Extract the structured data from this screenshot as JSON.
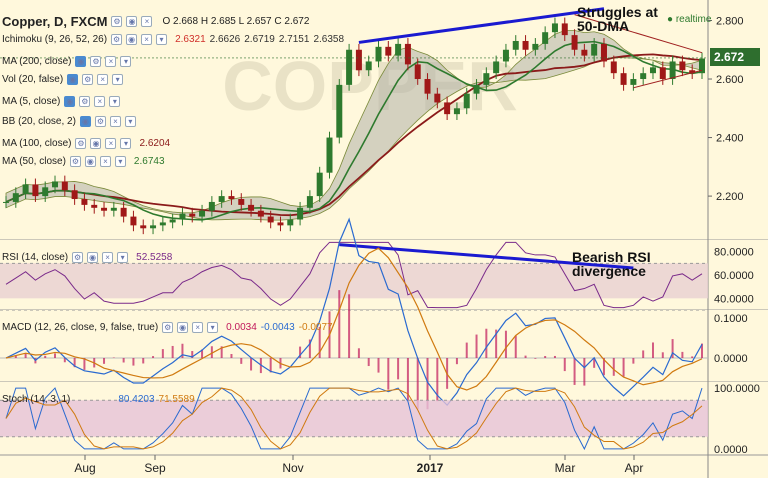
{
  "header": {
    "symbol": "Copper, D, FXCM",
    "ohlc": "O 2.668 H 2.685 L 2.657 C 2.672",
    "realtime": "realtime"
  },
  "indicators": [
    {
      "label": "Ichimoku (9, 26, 52, 26)",
      "values": [
        "2.6321",
        "2.6626",
        "2.6719",
        "2.7151",
        "2.6358"
      ],
      "colors": [
        "#d0302a",
        "#333",
        "#333",
        "#333",
        "#333"
      ]
    },
    {
      "label": "MA (200, close)",
      "values": [],
      "colors": []
    },
    {
      "label": "Vol (20, false)",
      "values": [],
      "colors": []
    },
    {
      "label": "MA (5, close)",
      "values": [],
      "colors": []
    },
    {
      "label": "BB (20, close, 2)",
      "values": [],
      "colors": []
    },
    {
      "label": "MA (100, close)",
      "values": [
        "2.6204"
      ],
      "colors": [
        "#8b1a1a"
      ]
    },
    {
      "label": "MA (50, close)",
      "values": [
        "2.6743"
      ],
      "colors": [
        "#2e7a2e"
      ]
    }
  ],
  "annotations": {
    "dma": "Struggles at\n50-DMA",
    "rsi": "Bearish RSI\ndivergence"
  },
  "price_tag": "2.672",
  "rsi_label": {
    "label": "RSI (14, close)",
    "value": "52.5258"
  },
  "macd_label": {
    "label": "MACD (12, 26, close, 9, false, true)",
    "values": [
      "0.0034",
      "-0.0043",
      "-0.0077"
    ]
  },
  "stoch_label": {
    "label": "Stoch (14, 3, 1)",
    "values": [
      "80.4203",
      "71.5589"
    ]
  },
  "colors": {
    "up": "#2e7a2e",
    "down": "#a01818",
    "ma50": "#2e7a2e",
    "ma100": "#8b1a1a",
    "trend": "#1a1ad0",
    "bg": "#fff8dc",
    "cloud": "#b0b0a8",
    "rsi_band": "#e8cfd2",
    "stoch_band": "#e6c2d8",
    "tag": "#2e6e2e"
  },
  "chart_data": [
    {
      "type": "candlestick",
      "title": "Copper, D, FXCM",
      "x_ticks": [
        "Aug",
        "Sep",
        "Nov",
        "2017",
        "Mar",
        "Apr"
      ],
      "y_ticks": [
        "2.800",
        "2.600",
        "2.400",
        "2.200"
      ],
      "ylim": [
        2.05,
        2.87
      ],
      "close_series_approx": [
        2.18,
        2.21,
        2.24,
        2.2,
        2.23,
        2.25,
        2.22,
        2.19,
        2.17,
        2.16,
        2.15,
        2.16,
        2.13,
        2.1,
        2.09,
        2.1,
        2.11,
        2.12,
        2.14,
        2.13,
        2.15,
        2.18,
        2.2,
        2.19,
        2.17,
        2.15,
        2.13,
        2.11,
        2.1,
        2.12,
        2.16,
        2.2,
        2.28,
        2.4,
        2.58,
        2.7,
        2.63,
        2.66,
        2.71,
        2.68,
        2.72,
        2.65,
        2.6,
        2.55,
        2.52,
        2.48,
        2.5,
        2.55,
        2.58,
        2.62,
        2.66,
        2.7,
        2.73,
        2.7,
        2.72,
        2.76,
        2.79,
        2.75,
        2.7,
        2.68,
        2.72,
        2.66,
        2.62,
        2.58,
        2.6,
        2.62,
        2.64,
        2.6,
        2.66,
        2.63,
        2.62,
        2.67
      ],
      "last_price": 2.672,
      "series": [
        {
          "name": "MA (50, close)",
          "last": 2.6743
        },
        {
          "name": "MA (100, close)",
          "last": 2.6204
        }
      ]
    },
    {
      "type": "line",
      "title": "RSI (14, close)",
      "y_ticks": [
        "80.0000",
        "60.0000",
        "40.0000"
      ],
      "ylim": [
        30,
        90
      ],
      "last": 52.5258
    },
    {
      "type": "line",
      "title": "MACD (12, 26, close, 9, false, true)",
      "y_ticks": [
        "0.1000",
        "0.0000"
      ],
      "ylim": [
        -0.06,
        0.12
      ],
      "values": [
        0.0034,
        -0.0043,
        -0.0077
      ]
    },
    {
      "type": "line",
      "title": "Stoch (14, 3, 1)",
      "y_ticks": [
        "100.0000",
        "0.0000"
      ],
      "ylim": [
        -10,
        110
      ],
      "values": [
        80.4203,
        71.5589
      ]
    }
  ]
}
